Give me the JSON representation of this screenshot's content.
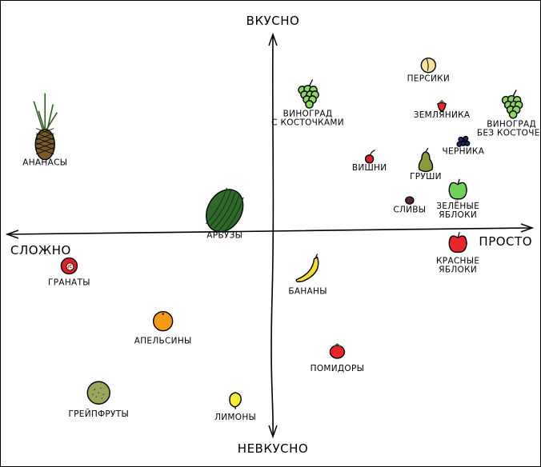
{
  "chart_data": {
    "type": "scatter",
    "title": "",
    "axes": {
      "top": "ВКУСНО",
      "bottom": "НЕВКУСНО",
      "left": "СЛОЖНО",
      "right": "ПРОСТО"
    },
    "xlim": [
      -10,
      10
    ],
    "ylim": [
      -10,
      10
    ],
    "grid": false,
    "points": [
      {
        "label": [
          "ПЕРСИКИ"
        ],
        "x": 5.8,
        "y": 8.1,
        "icon": "peach",
        "color": "#f7e1a0"
      },
      {
        "label": [
          "ЗЕМЛЯНИКА"
        ],
        "x": 6.3,
        "y": 6.1,
        "icon": "strawberry",
        "color": "#e8252a"
      },
      {
        "label": [
          "ВИНОГРАД",
          "БЕЗ КОСТОЧЕК"
        ],
        "x": 8.9,
        "y": 6.2,
        "icon": "green-grapes",
        "color": "#8fd468"
      },
      {
        "label": [
          "ВИНОГРАД",
          "С КОСТОЧКАМИ"
        ],
        "x": 1.3,
        "y": 6.7,
        "icon": "green-grapes",
        "color": "#8fd468"
      },
      {
        "label": [
          "ЧЕРНИКА"
        ],
        "x": 7.1,
        "y": 4.4,
        "icon": "blueberries",
        "color": "#1a2a6a"
      },
      {
        "label": [
          "ВИШНИ"
        ],
        "x": 3.6,
        "y": 3.6,
        "icon": "cherry",
        "color": "#d8232a"
      },
      {
        "label": [
          "ГРУШИ"
        ],
        "x": 5.7,
        "y": 3.4,
        "icon": "pear",
        "color": "#8a9a3a"
      },
      {
        "label": [
          "ЗЕЛЁНЫЕ",
          "ЯБЛОКИ"
        ],
        "x": 6.9,
        "y": 2.0,
        "icon": "green-apple",
        "color": "#6fd15a"
      },
      {
        "label": [
          "СЛИВЫ"
        ],
        "x": 5.1,
        "y": 1.5,
        "icon": "plum",
        "color": "#5a2a2a"
      },
      {
        "label": [
          "АРБУЗЫ"
        ],
        "x": -1.8,
        "y": 1.0,
        "icon": "watermelon",
        "color": "#2f6a2a"
      },
      {
        "label": [
          "АНАНАСЫ"
        ],
        "x": -8.5,
        "y": 4.7,
        "icon": "pineapple",
        "color": "#7a5a28"
      },
      {
        "label": [
          "КРАСНЫЕ",
          "ЯБЛОКИ"
        ],
        "x": 6.9,
        "y": -0.6,
        "icon": "red-apple",
        "color": "#e8252a"
      },
      {
        "label": [
          "БАНАНЫ"
        ],
        "x": 1.3,
        "y": -1.9,
        "icon": "banana",
        "color": "#f3dc3a"
      },
      {
        "label": [
          "ГРАНАТЫ"
        ],
        "x": -7.6,
        "y": -1.7,
        "icon": "pomegranate",
        "color": "#d8232a"
      },
      {
        "label": [
          "АПЕЛЬСИНЫ"
        ],
        "x": -4.1,
        "y": -4.4,
        "icon": "orange",
        "color": "#f39a1a"
      },
      {
        "label": [
          "ПОМИДОРЫ"
        ],
        "x": 2.4,
        "y": -5.9,
        "icon": "tomato",
        "color": "#e8252a"
      },
      {
        "label": [
          "ГРЕЙПФРУТЫ"
        ],
        "x": -6.5,
        "y": -7.9,
        "icon": "grapefruit",
        "color": "#9aa55a"
      },
      {
        "label": [
          "ЛИМОНЫ"
        ],
        "x": -1.4,
        "y": -8.2,
        "icon": "lemon",
        "color": "#f6ea3a"
      }
    ]
  }
}
